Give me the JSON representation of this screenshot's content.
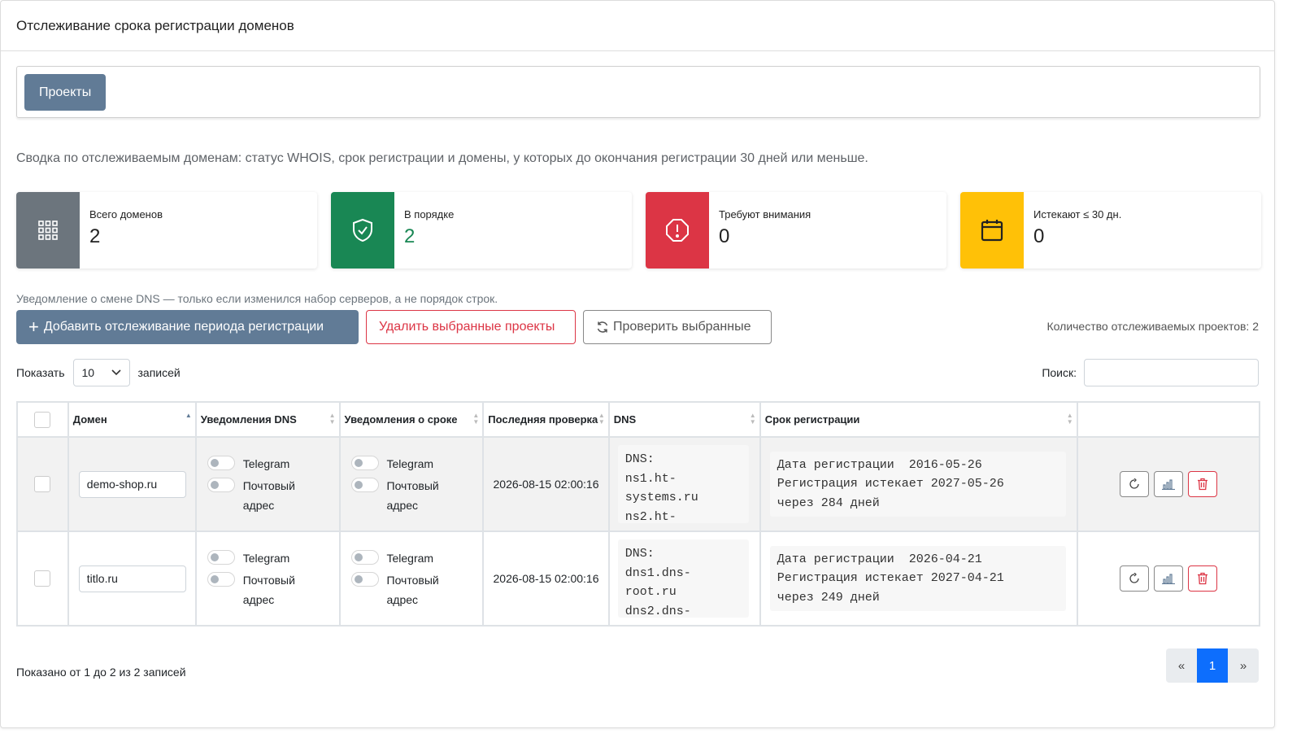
{
  "header": {
    "title": "Отслеживание срока регистрации доменов"
  },
  "projects_button": "Проекты",
  "summary_text": "Сводка по отслеживаемым доменам: статус WHOIS, срок регистрации и домены, у которых до окончания регистрации 30 дней или меньше.",
  "stats": [
    {
      "label": "Всего доменов",
      "value": "2",
      "color": "#6c757d",
      "icon": "grid-icon"
    },
    {
      "label": "В порядке",
      "value": "2",
      "color": "#198754",
      "icon": "shield-check-icon"
    },
    {
      "label": "Требуют внимания",
      "value": "0",
      "color": "#dc3545",
      "icon": "alert-octagon-icon"
    },
    {
      "label": "Истекают ≤ 30 дн.",
      "value": "0",
      "color": "#ffc107",
      "icon": "calendar-icon"
    }
  ],
  "dns_note": "Уведомление о смене DNS — только если изменился набор серверов, а не порядок строк.",
  "buttons": {
    "add": "Добавить отслеживание периода регистрации",
    "delete": "Удалить выбранные проекты",
    "check": "Проверить выбранные"
  },
  "tracked_count": "Количество отслеживаемых проектов: 2",
  "length_menu": {
    "prefix": "Показать",
    "value": "10",
    "suffix": "записей"
  },
  "search": {
    "label": "Поиск:",
    "value": ""
  },
  "table": {
    "headers": [
      "Домен",
      "Уведомления DNS",
      "Уведомления о сроке",
      "Последняя проверка",
      "DNS",
      "Срок регистрации"
    ],
    "toggle_telegram": "Telegram",
    "toggle_email": "Почтовый адрес",
    "rows": [
      {
        "domain": "demo-shop.ru",
        "last_check": "2026-08-15 02:00:16",
        "dns": "DNS:\nns1.ht-\nsystems.ru\nns2.ht-",
        "reg": "Дата регистрации  2016-05-26\nРегистрация истекает 2027-05-26\nчерез 284 дней"
      },
      {
        "domain": "titlo.ru",
        "last_check": "2026-08-15 02:00:16",
        "dns": "DNS:\ndns1.dns-\nroot.ru\ndns2.dns-",
        "reg": "Дата регистрации  2026-04-21\nРегистрация истекает 2027-04-21\nчерез 249 дней"
      }
    ]
  },
  "footer": {
    "info": "Показано от 1 до 2 из 2 записей",
    "pager": {
      "prev": "«",
      "current": "1",
      "next": "»"
    }
  }
}
